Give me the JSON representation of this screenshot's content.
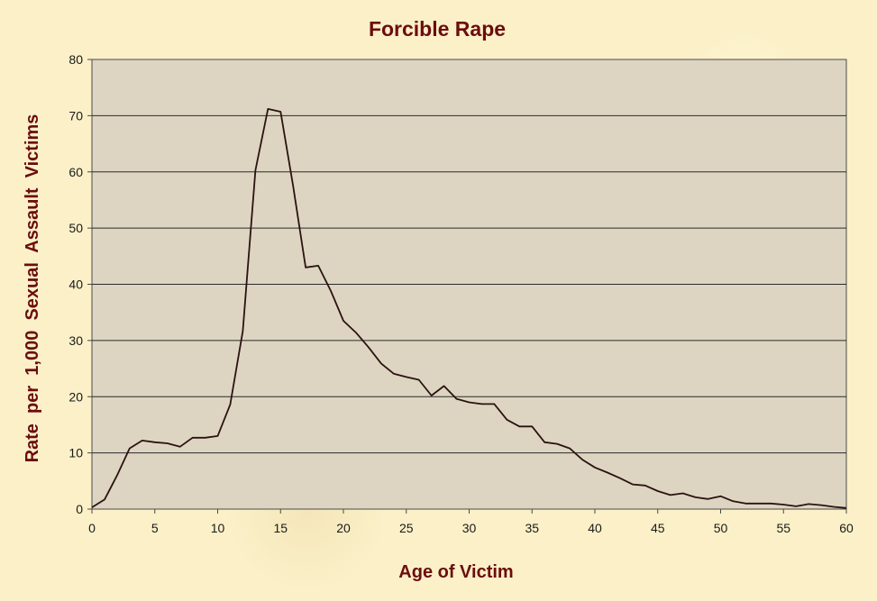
{
  "chart_data": {
    "type": "line",
    "title": "Forcible Rape",
    "xlabel": "Age of Victim",
    "ylabel": "Rate  per  1,000  Sexual  Assault  Victims",
    "xlim": [
      0,
      60
    ],
    "ylim": [
      0,
      80
    ],
    "xticks": [
      0,
      5,
      10,
      15,
      20,
      25,
      30,
      35,
      40,
      45,
      50,
      55,
      60
    ],
    "yticks": [
      0,
      10,
      20,
      30,
      40,
      50,
      60,
      70,
      80
    ],
    "grid": "horizontal",
    "legend": "none",
    "colors": {
      "line": "#2b1212",
      "plot_bg": "#ddd5c1",
      "title": "#6b0d0d"
    },
    "series": [
      {
        "x": [
          0,
          1,
          2,
          3,
          4,
          5,
          6,
          7,
          8,
          9,
          10,
          11,
          12,
          13,
          14,
          15,
          16,
          17,
          18,
          19,
          20,
          21,
          22,
          23,
          24,
          25,
          26,
          27,
          28,
          29,
          30,
          31,
          32,
          33,
          34,
          35,
          36,
          37,
          38,
          39,
          40,
          41,
          42,
          43,
          44,
          45,
          46,
          47,
          48,
          49,
          50,
          51,
          52,
          53,
          54,
          55,
          56,
          57,
          58,
          59,
          60
        ],
        "values": [
          0.3,
          1.7,
          6,
          10.8,
          12.2,
          11.9,
          11.7,
          11.1,
          12.7,
          12.7,
          13,
          18.6,
          31.7,
          60.3,
          71.2,
          70.7,
          57.5,
          43,
          43.3,
          38.8,
          33.5,
          31.4,
          28.8,
          25.9,
          24.1,
          23.5,
          23,
          20.2,
          21.9,
          19.6,
          19,
          18.7,
          18.7,
          15.9,
          14.7,
          14.7,
          11.9,
          11.6,
          10.8,
          8.8,
          7.4,
          6.5,
          5.5,
          4.4,
          4.2,
          3.2,
          2.5,
          2.8,
          2.1,
          1.8,
          2.3,
          1.4,
          1,
          1,
          1,
          0.8,
          0.5,
          0.9,
          0.7,
          0.4,
          0.2
        ]
      }
    ]
  }
}
